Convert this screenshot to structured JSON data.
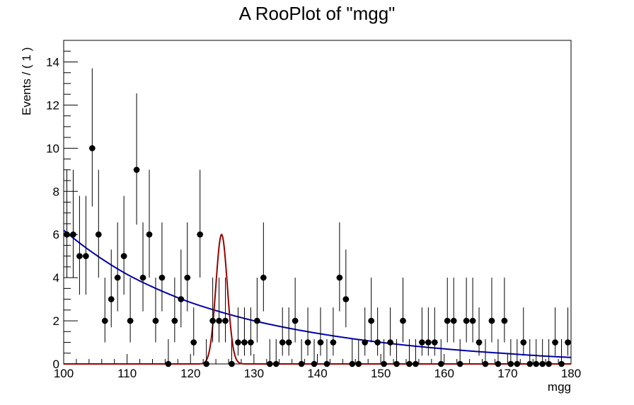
{
  "chart_data": {
    "type": "scatter",
    "title": "A RooPlot of \"mgg\"",
    "xlabel": "mgg",
    "ylabel": "Events / ( 1 )",
    "xlim": [
      100,
      180
    ],
    "ylim": [
      0,
      15
    ],
    "x_ticks": [
      100,
      110,
      120,
      130,
      140,
      150,
      160,
      170,
      180
    ],
    "y_ticks": [
      0,
      2,
      4,
      6,
      8,
      10,
      12,
      14
    ],
    "grid": false,
    "legend": "none",
    "series": [
      {
        "kind": "points_with_errors",
        "color": "#000000",
        "x": [
          100.5,
          101.5,
          102.5,
          103.5,
          104.5,
          105.5,
          106.5,
          107.5,
          108.5,
          109.5,
          110.5,
          111.5,
          112.5,
          113.5,
          114.5,
          115.5,
          116.5,
          117.5,
          118.5,
          119.5,
          120.5,
          121.5,
          122.5,
          123.5,
          124.5,
          125.5,
          126.5,
          127.5,
          128.5,
          129.5,
          130.5,
          131.5,
          132.5,
          133.5,
          134.5,
          135.5,
          136.5,
          137.5,
          138.5,
          139.5,
          140.5,
          141.5,
          142.5,
          143.5,
          144.5,
          145.5,
          146.5,
          147.5,
          148.5,
          149.5,
          150.5,
          151.5,
          152.5,
          153.5,
          154.5,
          155.5,
          156.5,
          157.5,
          158.5,
          159.5,
          160.5,
          161.5,
          162.5,
          163.5,
          164.5,
          165.5,
          166.5,
          167.5,
          168.5,
          169.5,
          170.5,
          171.5,
          172.5,
          173.5,
          174.5,
          175.5,
          176.5,
          177.5,
          178.5,
          179.5
        ],
        "y": [
          6,
          6,
          5,
          5,
          10,
          6,
          2,
          3,
          4,
          5,
          2,
          9,
          4,
          6,
          2,
          4,
          0,
          2,
          3,
          4,
          1,
          6,
          0,
          2,
          2,
          2,
          0,
          1,
          1,
          1,
          2,
          4,
          0,
          0,
          1,
          1,
          2,
          0,
          1,
          0,
          1,
          0,
          1,
          4,
          3,
          0,
          0,
          1,
          2,
          1,
          0,
          1,
          0,
          2,
          0,
          0,
          1,
          1,
          1,
          0,
          2,
          2,
          0,
          2,
          2,
          1,
          0,
          2,
          0,
          2,
          0,
          0,
          1,
          0,
          0,
          0,
          0,
          1,
          0,
          1
        ]
      },
      {
        "kind": "curve",
        "name": "",
        "color": "#0000aa",
        "x": [
          100,
          110,
          120,
          130,
          140,
          150,
          160,
          170,
          180
        ],
        "y": [
          6.2,
          4.15,
          2.85,
          2.0,
          1.42,
          1.0,
          0.7,
          0.48,
          0.3
        ]
      },
      {
        "kind": "curve",
        "name": "",
        "color": "#990000",
        "peak_x": 124.9,
        "peak_y": 6.0,
        "sigma": 0.9
      }
    ]
  }
}
